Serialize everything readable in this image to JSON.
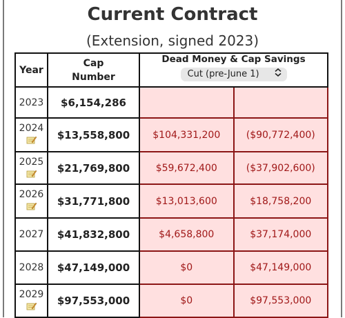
{
  "header": {
    "title": "Current Contract",
    "subtitle": "(Extension, signed 2023)"
  },
  "table": {
    "col_year": "Year",
    "col_cap_line1": "Cap",
    "col_cap_line2": "Number",
    "col_dead": "Dead Money & Cap Savings",
    "cut_select": "Cut (pre-June 1)",
    "rows": [
      {
        "year": "2023",
        "cap": "$6,154,286",
        "dead": "",
        "save": "",
        "note": false
      },
      {
        "year": "2024",
        "cap": "$13,558,800",
        "dead": "$104,331,200",
        "save": "($90,772,400)",
        "note": true
      },
      {
        "year": "2025",
        "cap": "$21,769,800",
        "dead": "$59,672,400",
        "save": "($37,902,600)",
        "note": true
      },
      {
        "year": "2026",
        "cap": "$31,771,800",
        "dead": "$13,013,600",
        "save": "$18,758,200",
        "note": true
      },
      {
        "year": "2027",
        "cap": "$41,832,800",
        "dead": "$4,658,800",
        "save": "$37,174,000",
        "note": false
      },
      {
        "year": "2028",
        "cap": "$47,149,000",
        "dead": "$0",
        "save": "$47,149,000",
        "note": false
      },
      {
        "year": "2029",
        "cap": "$97,553,000",
        "dead": "$0",
        "save": "$97,553,000",
        "note": true
      }
    ]
  },
  "colors": {
    "dead_bg": "#ffe0e0",
    "dead_text": "#a01818",
    "dead_border": "#8b1515"
  },
  "icons": {
    "note": "notepad-pencil-icon",
    "select": "chevron-up-down-icon"
  }
}
